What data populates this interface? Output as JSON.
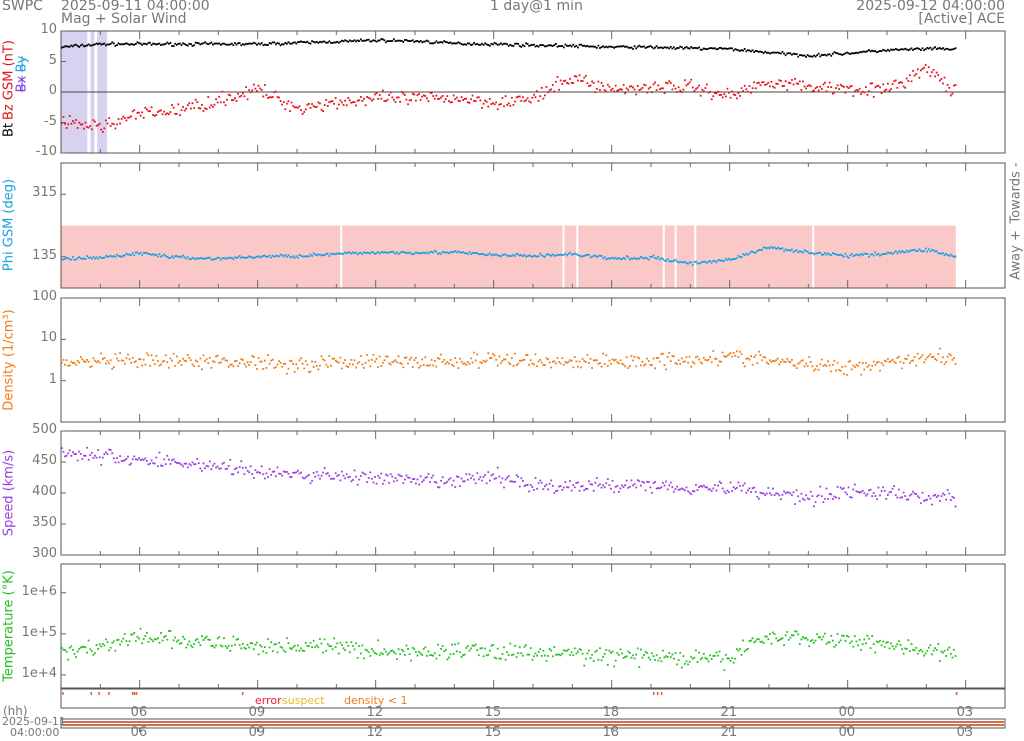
{
  "header": {
    "org": "SWPC",
    "start": "2025-09-11 04:00:00",
    "subtitle": "Mag + Solar Wind",
    "span": "1 day@1 min",
    "end": "2025-09-12 04:00:00",
    "source": "[Active] ACE"
  },
  "legend": {
    "error": "error",
    "suspect": "suspect",
    "density": "density < 1"
  },
  "xaxis": {
    "unit": "(hh)",
    "date": "2025-09-11",
    "time": "04:00:00",
    "ticks": [
      "06",
      "09",
      "12",
      "15",
      "18",
      "21",
      "00",
      "03"
    ]
  },
  "colors": {
    "bt": "#000000",
    "bz": "#e8101a",
    "phi": "#1aa0e0",
    "density": "#f07c18",
    "speed": "#9a40e0",
    "temp": "#22c020",
    "bx": "#8040e0",
    "by": "#20a0e0"
  },
  "chart_data": [
    {
      "type": "scatter",
      "title": "Mag",
      "ylabel": "Bt Bz GSM (nT)",
      "ylabel_parts": {
        "bt": "Bt",
        "bx": "Bx",
        "by": "By",
        "bz": "Bz GSM (nT)"
      },
      "ylim": [
        -10,
        10
      ],
      "yticks": [
        "10",
        "5",
        "0",
        "-5",
        "-10"
      ],
      "x_hours_from_start": "hourly 0..22.75",
      "series": [
        {
          "name": "Bt",
          "values": [
            7.5,
            8,
            8,
            8,
            8,
            8,
            8.2,
            8.4,
            8.6,
            8.5,
            8.1,
            8,
            7.8,
            7.7,
            7.5,
            7.5,
            7.3,
            7.2,
            6.6,
            6.1,
            6.5,
            7,
            7.2,
            7.2
          ]
        },
        {
          "name": "Bz",
          "values": [
            -5,
            -5.5,
            -3.5,
            -2.8,
            -1.2,
            0.5,
            -2.5,
            -1.5,
            -1,
            -1,
            -0.8,
            -1.5,
            -1,
            2.5,
            0.5,
            1,
            1,
            -0.5,
            2,
            1,
            0.8,
            0.5,
            4,
            -1.5
          ]
        }
      ]
    },
    {
      "type": "scatter",
      "title": "Phi",
      "ylabel": "Phi GSM (deg)",
      "ylim": [
        45,
        405
      ],
      "yticks": [
        "315",
        "135"
      ],
      "right_labels": {
        "towards": "Towards -",
        "away": "Away +"
      },
      "series": [
        {
          "name": "Phi",
          "values": [
            130,
            135,
            148,
            135,
            132,
            138,
            140,
            145,
            150,
            150,
            150,
            142,
            140,
            145,
            132,
            135,
            118,
            130,
            165,
            150,
            140,
            148,
            158,
            130
          ]
        }
      ]
    },
    {
      "type": "scatter",
      "title": "Density",
      "ylabel": "Density (1/cm³)",
      "ylim": [
        0.1,
        100
      ],
      "scale": "log",
      "yticks": [
        "100",
        "10",
        "1"
      ],
      "series": [
        {
          "name": "Density",
          "values": [
            2.8,
            3,
            3,
            3,
            3,
            3,
            2.5,
            3,
            3,
            3,
            3,
            3.3,
            3.2,
            3,
            3,
            3.2,
            3.5,
            4,
            3.2,
            2.5,
            2.2,
            3,
            4,
            3.5
          ]
        }
      ]
    },
    {
      "type": "scatter",
      "title": "Speed",
      "ylabel": "Speed (km/s)",
      "ylim": [
        300,
        500
      ],
      "yticks": [
        "500",
        "450",
        "400",
        "350",
        "300"
      ],
      "series": [
        {
          "name": "Speed",
          "values": [
            468,
            460,
            455,
            450,
            445,
            435,
            430,
            430,
            425,
            420,
            420,
            428,
            415,
            410,
            415,
            415,
            410,
            410,
            402,
            395,
            405,
            400,
            395,
            390
          ]
        }
      ]
    },
    {
      "type": "scatter",
      "title": "Temperature",
      "ylabel": "Temperature (°K)",
      "ylim": [
        4800,
        5000000
      ],
      "scale": "log",
      "yticks": [
        "1e+6",
        "1e+5",
        "1e+4"
      ],
      "series": [
        {
          "name": "Temperature",
          "values": [
            40000,
            50000,
            85000,
            70000,
            60000,
            50000,
            55000,
            50000,
            40000,
            35000,
            42000,
            40000,
            35000,
            35000,
            30000,
            30000,
            25000,
            25000,
            90000,
            80000,
            75000,
            60000,
            40000,
            25000
          ]
        }
      ]
    }
  ]
}
